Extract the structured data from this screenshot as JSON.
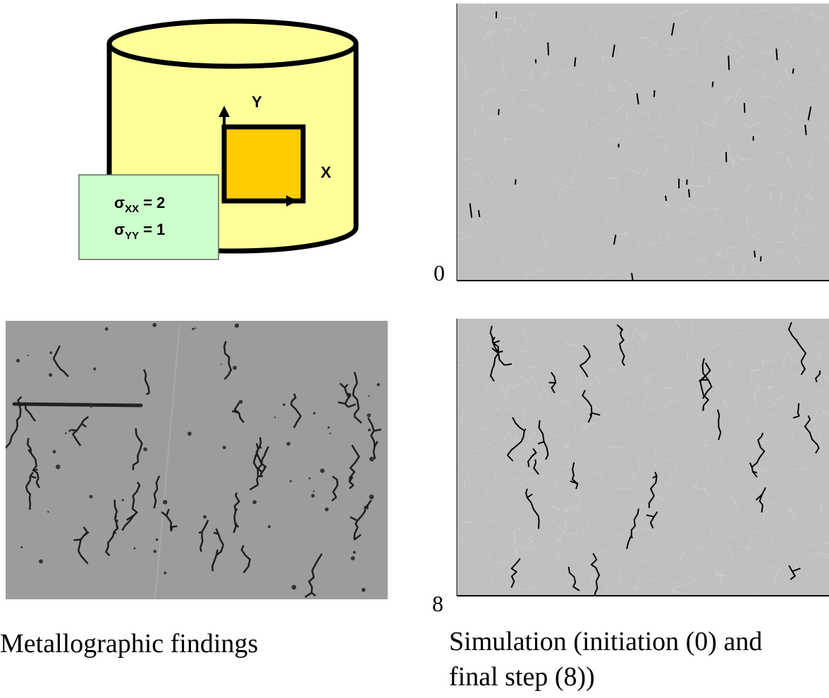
{
  "diagram": {
    "axes": {
      "y": "Y",
      "x": "X"
    },
    "stresses": [
      {
        "symbol": "σ",
        "subscript": "XX",
        "value": "= 2"
      },
      {
        "symbol": "σ",
        "subscript": "YY",
        "value": "= 1"
      }
    ],
    "panels": [
      {
        "step": "0"
      },
      {
        "step": "8"
      }
    ],
    "captions": {
      "metallography": "Metallographic findings",
      "simulation": [
        "Simulation (initiation (0) and",
        "final step (8))"
      ]
    }
  }
}
